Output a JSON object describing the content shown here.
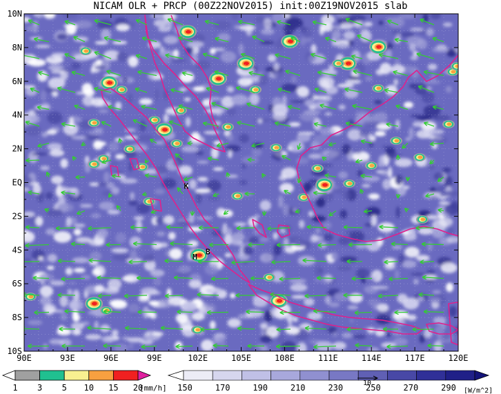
{
  "title": "NICAM OLR + PRCP (00Z22NOV2015) init:00Z19NOV2015 slab",
  "map": {
    "lon_labels": [
      "90E",
      "93E",
      "96E",
      "99E",
      "102E",
      "105E",
      "108E",
      "111E",
      "114E",
      "117E",
      "120E"
    ],
    "lat_labels": [
      "10N",
      "8N",
      "6N",
      "4N",
      "2N",
      "EQ",
      "2S",
      "4S",
      "6S",
      "8S",
      "10S"
    ],
    "lon_range": [
      90,
      120
    ],
    "lat_range": [
      -10,
      10
    ],
    "markers": [
      {
        "label": "K",
        "lon": 101.2,
        "lat": -0.2
      },
      {
        "label": "M",
        "lon": 101.8,
        "lat": -4.4
      },
      {
        "label": "B",
        "lon": 102.7,
        "lat": -4.1
      }
    ],
    "colors": {
      "coastline": "#e0208c",
      "wind_vectors": "#33cc33",
      "olr_low": "#ffffff",
      "olr_high": "#1a1a7a"
    }
  },
  "legend_precip": {
    "labels": [
      "1",
      "3",
      "5",
      "10",
      "15",
      "20"
    ],
    "unit": "[mm/h]",
    "colors": [
      "#ffffff",
      "#a0a0a0",
      "#20c090",
      "#f8f090",
      "#f8a040",
      "#f02020",
      "#e020a0"
    ]
  },
  "legend_olr": {
    "labels": [
      "150",
      "170",
      "190",
      "210",
      "230",
      "250",
      "270",
      "290"
    ],
    "unit": "[W/m^2]",
    "vector_ref": "10",
    "colors": [
      "#ffffff",
      "#ececf6",
      "#d6d6ee",
      "#c0c0e6",
      "#a8a8dc",
      "#9090d0",
      "#7878c4",
      "#6060b4",
      "#4848a6",
      "#303098",
      "#202088",
      "#14147a"
    ]
  }
}
